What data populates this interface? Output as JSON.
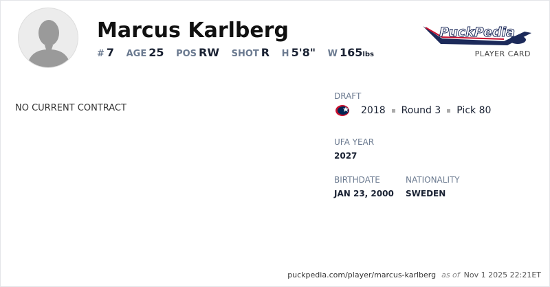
{
  "player": {
    "name": "Marcus Karlberg",
    "number_label": "#",
    "number": "7",
    "age_label": "AGE",
    "age": "25",
    "pos_label": "POS",
    "pos": "RW",
    "shot_label": "SHOT",
    "shot": "R",
    "height_label": "H",
    "height": "5'8\"",
    "weight_label": "W",
    "weight": "165",
    "weight_unit": "lbs"
  },
  "brand": {
    "logo_text": "PuckPedia",
    "subtitle": "PLAYER CARD"
  },
  "contract": {
    "status": "NO CURRENT CONTRACT"
  },
  "draft": {
    "label": "DRAFT",
    "team_icon": "columbus-blue-jackets-logo",
    "year": "2018",
    "round": "Round 3",
    "pick": "Pick 80"
  },
  "ufa": {
    "label": "UFA YEAR",
    "value": "2027"
  },
  "birthdate": {
    "label": "BIRTHDATE",
    "value": "JAN 23, 2000"
  },
  "nationality": {
    "label": "NATIONALITY",
    "value": "SWEDEN"
  },
  "footer": {
    "url": "puckpedia.com/player/marcus-karlberg",
    "as_of": "as of",
    "date": "Nov 1 2025 22:21ET"
  }
}
